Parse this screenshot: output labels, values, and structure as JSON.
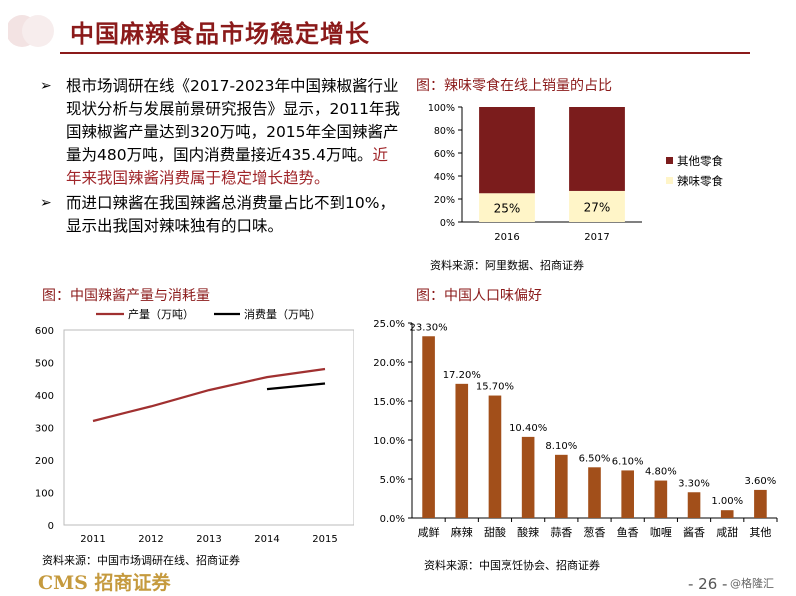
{
  "header": {
    "title": "中国麻辣食品市场稳定增长"
  },
  "bullets": [
    {
      "arrow": "➢",
      "text_a": "根市场调研在线《2017-2023年中国辣椒酱行业现状分析与发展前景研究报告》显示，2011年我国辣椒酱产量达到320万吨，2015年全国辣酱产量为480万吨，国内消费量接近435.4万吨。",
      "text_b": "近年来我国辣酱消费属于稳定增长趋势。"
    },
    {
      "arrow": "➢",
      "text_a": "而进口辣酱在我国辣酱总消费量占比不到10%，显示出我国对辣味独有的口味。",
      "text_b": ""
    }
  ],
  "captions": {
    "chart1": "图：辣味零食在线上销量的占比",
    "chart2": "图：中国辣酱产量与消耗量",
    "chart3": "图：中国人口味偏好"
  },
  "sources": {
    "chart1": "资料来源：阿里数据、招商证券",
    "chart2": "资料来源：中国市场调研在线、招商证券",
    "chart3": "资料来源：中国烹饪协会、招商证券"
  },
  "footer": {
    "logo": "CMS 招商证券",
    "page": "- 26 -",
    "watermark": "@格隆汇"
  },
  "colors": {
    "dark_red": "#7b1c1c",
    "cream": "#fff5c8",
    "brown": "#a24f1a",
    "title_red": "#8b1a1a"
  },
  "chart_data": [
    {
      "type": "bar",
      "stacked": true,
      "categories": [
        "2016",
        "2017"
      ],
      "series": [
        {
          "name": "辣味零食",
          "values": [
            25,
            27
          ],
          "labels": [
            "25%",
            "27%"
          ]
        },
        {
          "name": "其他零食",
          "values": [
            75,
            73
          ]
        }
      ],
      "ylim": [
        0,
        100
      ],
      "yticks": [
        "0%",
        "20%",
        "40%",
        "60%",
        "80%",
        "100%"
      ],
      "legend": "right"
    },
    {
      "type": "line",
      "x": [
        "2011",
        "2012",
        "2013",
        "2014",
        "2015"
      ],
      "series": [
        {
          "name": "产量（万吨）",
          "values": [
            320,
            365,
            415,
            455,
            480
          ]
        },
        {
          "name": "消费量（万吨）",
          "values": [
            null,
            null,
            null,
            418,
            435.4
          ]
        }
      ],
      "ylim": [
        0,
        600
      ],
      "yticks": [
        "0",
        "100",
        "200",
        "300",
        "400",
        "500",
        "600"
      ],
      "legend": "top"
    },
    {
      "type": "bar",
      "categories": [
        "咸鲜",
        "麻辣",
        "甜酸",
        "酸辣",
        "蒜香",
        "葱香",
        "鱼香",
        "咖喱",
        "酱香",
        "咸甜",
        "其他"
      ],
      "values": [
        23.3,
        17.2,
        15.7,
        10.4,
        8.1,
        6.5,
        6.1,
        4.8,
        3.3,
        1.0,
        3.6
      ],
      "labels": [
        "23.30%",
        "17.20%",
        "15.70%",
        "10.40%",
        "8.10%",
        "6.50%",
        "6.10%",
        "4.80%",
        "3.30%",
        "1.00%",
        "3.60%"
      ],
      "ylim": [
        0,
        25
      ],
      "yticks": [
        "0.0%",
        "5.0%",
        "10.0%",
        "15.0%",
        "20.0%",
        "25.0%"
      ]
    }
  ]
}
